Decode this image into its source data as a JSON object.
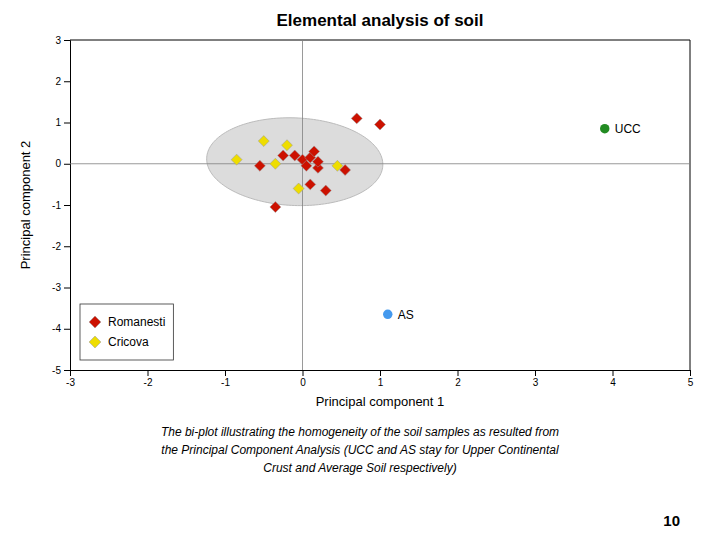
{
  "chart_data": {
    "type": "scatter",
    "title": "Elemental analysis of soil",
    "xlabel": "Principal component 1",
    "ylabel": "Principal component 2",
    "xlim": [
      -3,
      5
    ],
    "ylim": [
      -5,
      3
    ],
    "xticks": [
      -3,
      -2,
      -1,
      0,
      1,
      2,
      3,
      4,
      5
    ],
    "yticks": [
      -5,
      -4,
      -3,
      -2,
      -1,
      0,
      1,
      2,
      3
    ],
    "grid": false,
    "legend": "lower left",
    "series": [
      {
        "name": "Romanesti",
        "color": "#CC1100",
        "marker": "diamond",
        "x": [
          -0.55,
          -0.25,
          -0.1,
          0.0,
          0.05,
          0.1,
          0.15,
          0.2,
          0.3,
          0.55,
          0.7,
          1.0,
          -0.35,
          0.1,
          0.2
        ],
        "values": [
          -0.05,
          0.2,
          0.2,
          0.1,
          -0.05,
          0.15,
          0.3,
          -0.1,
          -0.65,
          -0.15,
          1.1,
          0.95,
          -1.05,
          -0.5,
          0.05
        ]
      },
      {
        "name": "Cricova",
        "color": "#EEDD00",
        "marker": "diamond",
        "x": [
          -0.85,
          -0.5,
          -0.35,
          -0.2,
          -0.05,
          0.45
        ],
        "values": [
          0.1,
          0.55,
          0.0,
          0.45,
          -0.6,
          -0.05
        ]
      }
    ],
    "annotations": [
      {
        "text": "UCC",
        "color": "#228B22",
        "marker": "circle",
        "x": 3.9,
        "y": 0.85
      },
      {
        "text": "AS",
        "color": "#4499EE",
        "marker": "circle",
        "x": 1.1,
        "y": -3.65
      }
    ],
    "ellipse": {
      "center_x": -0.1,
      "center_y": 0.05,
      "width": 2.3,
      "height": 2.1,
      "angle": -22
    },
    "reference_lines": {
      "x": [
        0
      ],
      "y": [
        0
      ]
    },
    "caption": [
      "The bi-plot illustrating the homogeneity of the soil samples as resulted from",
      "the Principal Component Analysis (UCC and AS stay for Upper Continental",
      "Crust and Average Soil respectively)"
    ],
    "page_number": "10"
  }
}
